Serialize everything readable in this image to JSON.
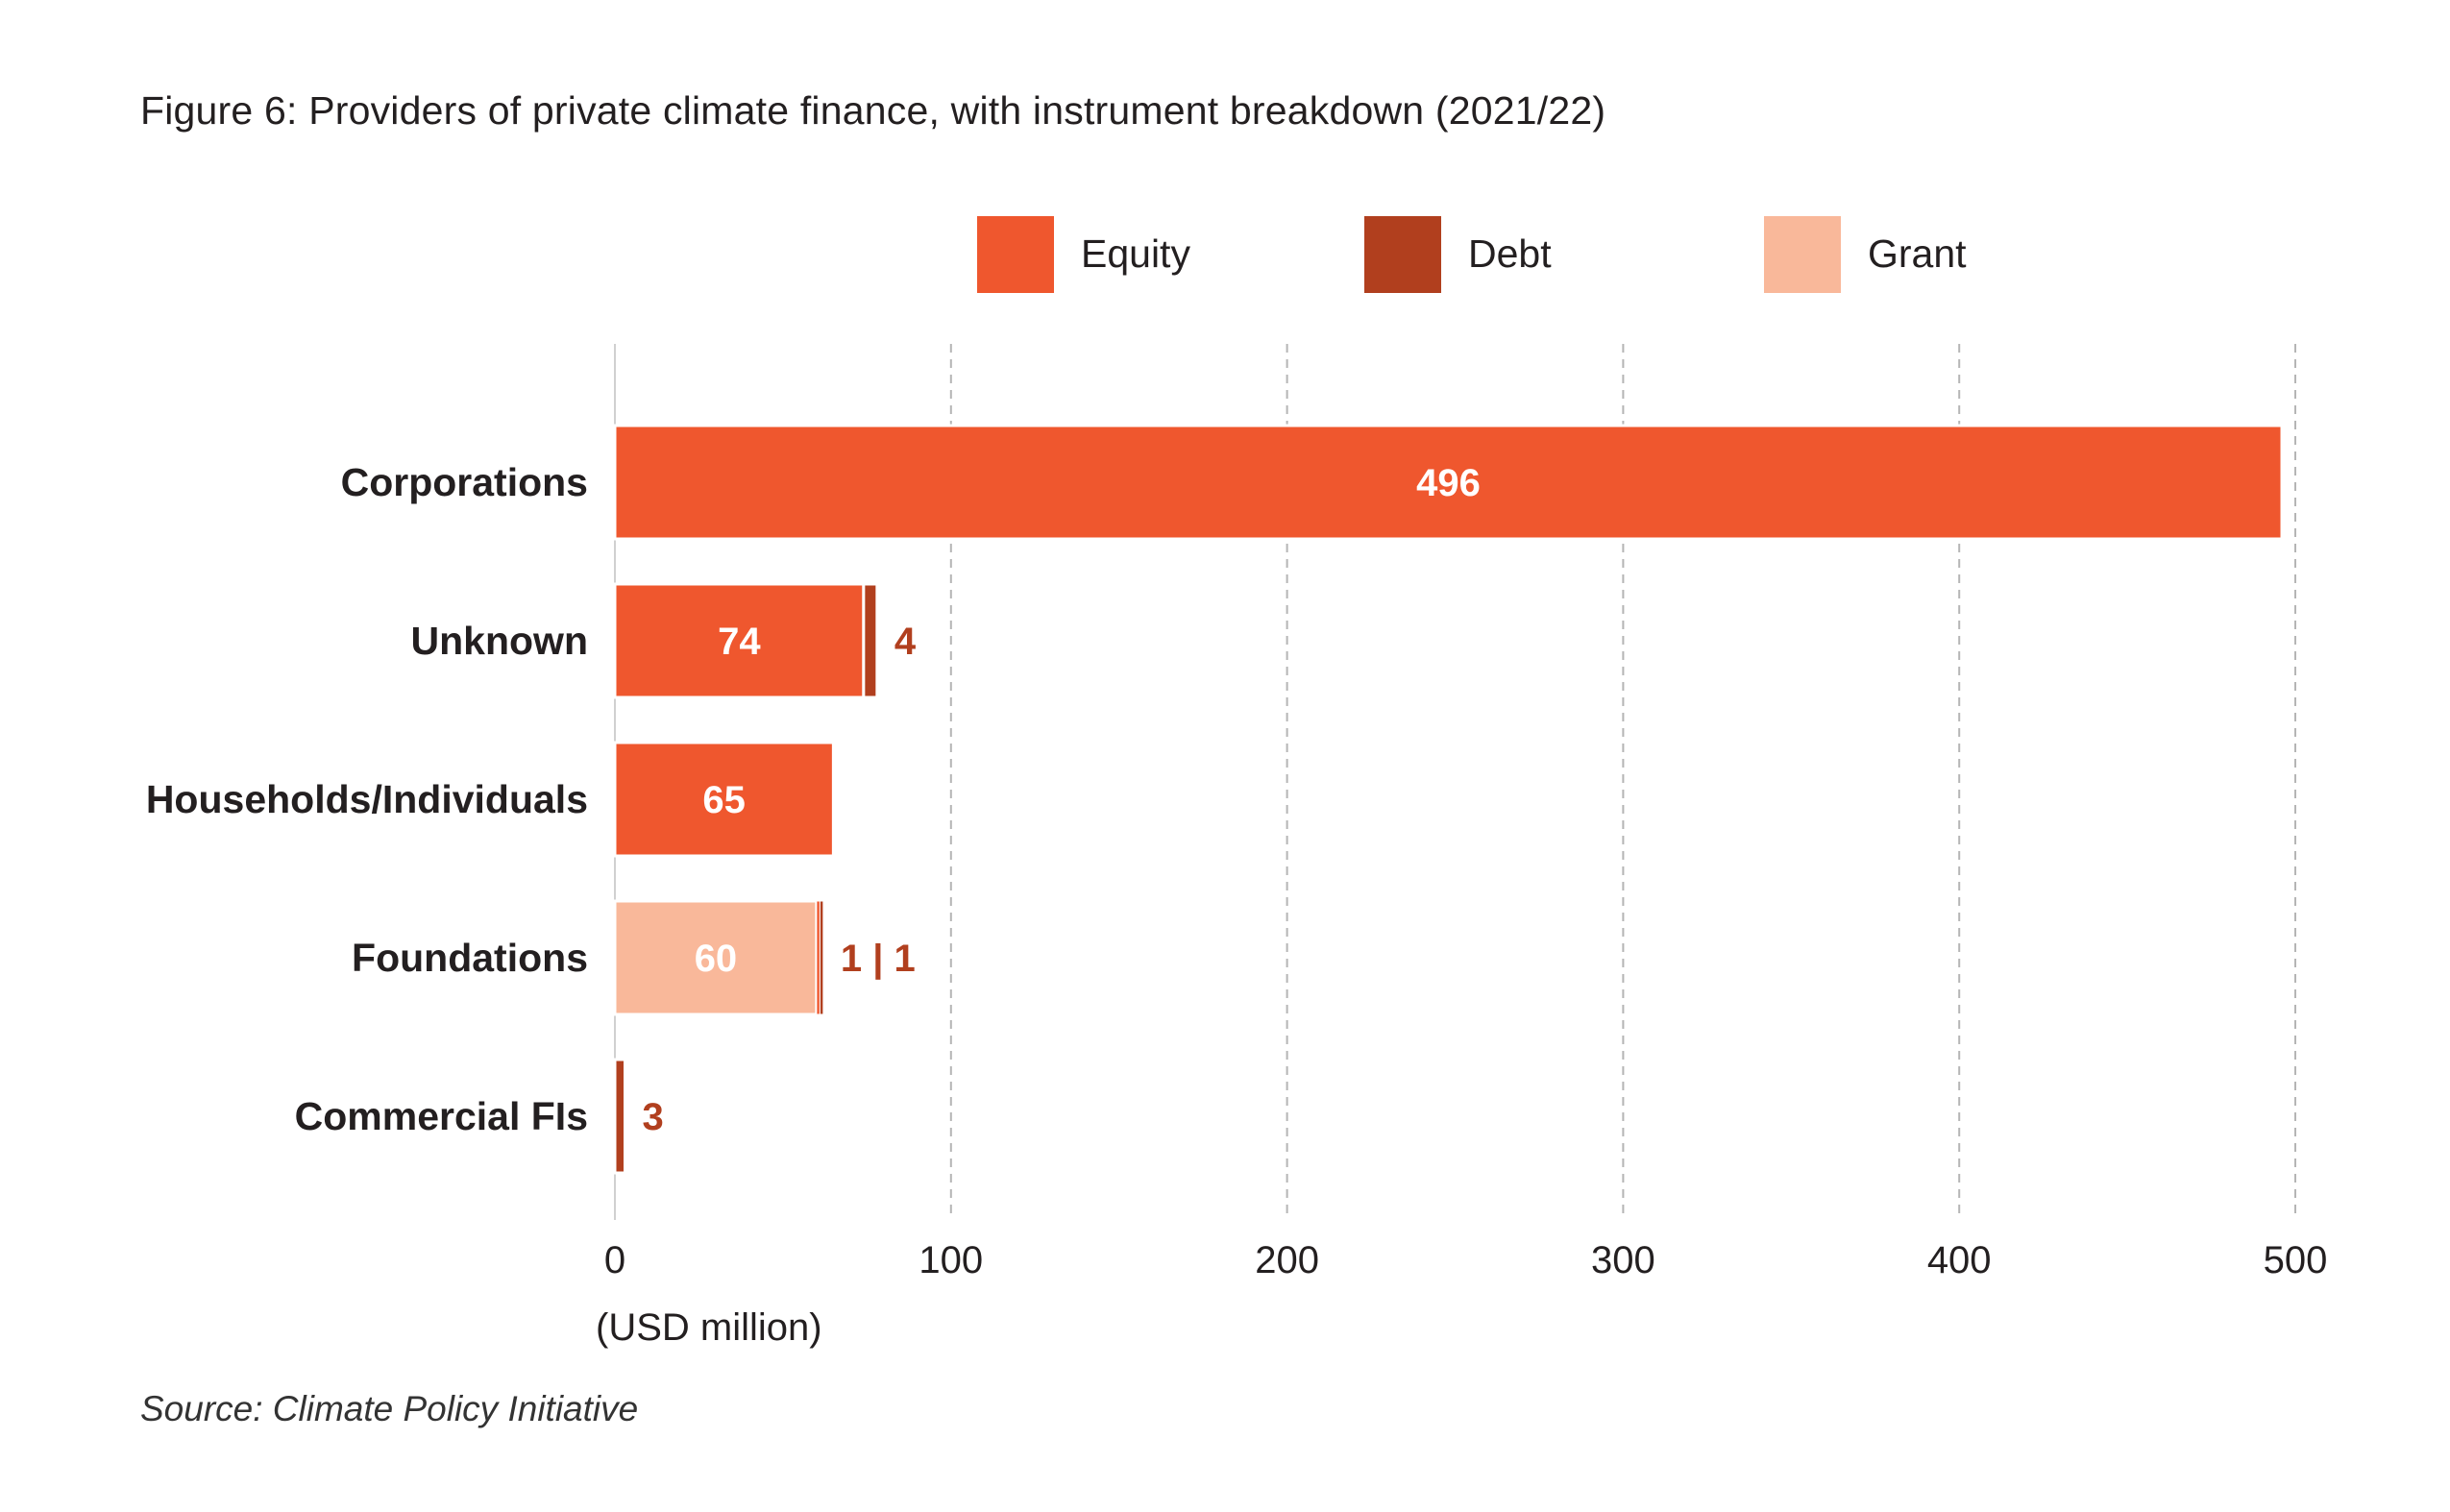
{
  "title": "Figure 6: Providers of private climate finance, with instrument breakdown (2021/22)",
  "source": "Source: Climate Policy Initiative",
  "colors": {
    "equity": "#ef572e",
    "debt": "#b13f1e",
    "grant": "#f9b89a",
    "grid": "#b5b5b5",
    "text": "#231f20",
    "label_inside": "#ffffff",
    "label_outside": "#b13f1e"
  },
  "chart_data": {
    "type": "bar",
    "orientation": "horizontal",
    "stacked": true,
    "categories": [
      "Corporations",
      "Unknown",
      "Households/Individuals",
      "Foundations",
      "Commercial FIs"
    ],
    "series": [
      {
        "name": "Equity",
        "key": "equity",
        "values": [
          496,
          74,
          65,
          1,
          0
        ]
      },
      {
        "name": "Debt",
        "key": "debt",
        "values": [
          0,
          4,
          0,
          1,
          3
        ]
      },
      {
        "name": "Grant",
        "key": "grant",
        "values": [
          0,
          0,
          0,
          60,
          0
        ]
      }
    ],
    "stack_order": [
      "grant",
      "equity",
      "debt"
    ],
    "bar_labels": [
      {
        "category": "Corporations",
        "inside": "496",
        "outside": ""
      },
      {
        "category": "Unknown",
        "inside": "74",
        "outside": "4"
      },
      {
        "category": "Households/Individuals",
        "inside": "65",
        "outside": ""
      },
      {
        "category": "Foundations",
        "inside": "60",
        "outside": "1 | 1"
      },
      {
        "category": "Commercial FIs",
        "inside": "",
        "outside": "3"
      }
    ],
    "xlabel": "(USD million)",
    "xlim": [
      0,
      500
    ],
    "xticks": [
      0,
      100,
      200,
      300,
      400,
      500
    ],
    "grid": "vertical dashed",
    "legend_position": "top"
  }
}
